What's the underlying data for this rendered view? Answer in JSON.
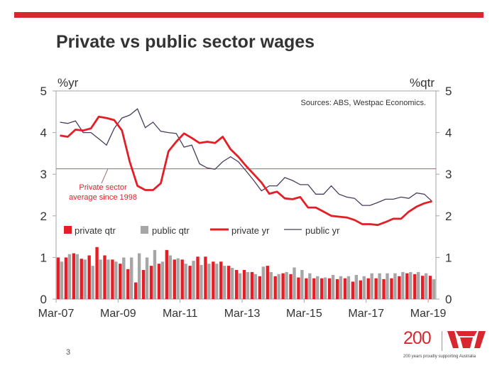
{
  "title": "Private vs public sector wages",
  "page_number": "3",
  "logo": {
    "number": "200",
    "tagline": "200 years proudly supporting Australia"
  },
  "colors": {
    "brand_red": "#d7282f",
    "private": "#e41e26",
    "public_qtr": "#a6a6a6",
    "public_yr": "#4a3d5c",
    "average": "#a8676c"
  },
  "chart_data": {
    "type": "bar+line",
    "left_unit": "%yr",
    "right_unit": "%qtr",
    "source_note": "Sources: ABS, Westpac Economics.",
    "ylim": [
      0,
      5
    ],
    "yticks": [
      "0",
      "1",
      "2",
      "3",
      "4",
      "5"
    ],
    "x_tick_labels": [
      "Mar-07",
      "Mar-09",
      "Mar-11",
      "Mar-13",
      "Mar-15",
      "Mar-17",
      "Mar-19"
    ],
    "x_tick_positions": [
      0,
      8,
      16,
      24,
      32,
      40,
      48
    ],
    "n_periods": 49,
    "annotation": {
      "line1": "Private sector",
      "line2": "average since 1998",
      "value": 3.13
    },
    "series": [
      {
        "name": "private qtr",
        "kind": "bar",
        "values": [
          1.0,
          1.0,
          1.1,
          0.97,
          1.05,
          1.25,
          1.05,
          0.95,
          0.85,
          0.72,
          0.4,
          0.7,
          0.8,
          0.85,
          1.18,
          0.95,
          0.95,
          0.8,
          1.02,
          1.02,
          0.9,
          0.9,
          0.8,
          0.7,
          0.7,
          0.65,
          0.55,
          0.8,
          0.55,
          0.62,
          0.6,
          0.52,
          0.5,
          0.5,
          0.5,
          0.5,
          0.48,
          0.5,
          0.42,
          0.45,
          0.5,
          0.5,
          0.48,
          0.5,
          0.55,
          0.62,
          0.6,
          0.56,
          0.56
        ]
      },
      {
        "name": "public qtr",
        "kind": "bar",
        "values": [
          0.9,
          1.08,
          1.08,
          0.95,
          0.8,
          0.95,
          0.95,
          0.9,
          1.0,
          1.0,
          1.1,
          1.0,
          1.18,
          0.9,
          1.05,
          0.98,
          0.85,
          0.92,
          0.82,
          0.85,
          0.85,
          0.8,
          0.75,
          0.62,
          0.65,
          0.6,
          0.78,
          0.65,
          0.6,
          0.65,
          0.76,
          0.7,
          0.62,
          0.55,
          0.52,
          0.58,
          0.55,
          0.55,
          0.58,
          0.55,
          0.62,
          0.62,
          0.62,
          0.62,
          0.65,
          0.65,
          0.65,
          0.62,
          0.48
        ]
      },
      {
        "name": "private yr",
        "kind": "line",
        "values": [
          3.93,
          3.9,
          4.07,
          4.05,
          4.1,
          4.38,
          4.35,
          4.3,
          4.05,
          3.3,
          2.72,
          2.62,
          2.62,
          2.78,
          3.55,
          3.78,
          3.98,
          3.87,
          3.75,
          3.78,
          3.75,
          3.9,
          3.6,
          3.42,
          3.2,
          3.0,
          2.8,
          2.53,
          2.58,
          2.42,
          2.4,
          2.45,
          2.2,
          2.2,
          2.1,
          2.0,
          1.98,
          1.96,
          1.9,
          1.8,
          1.8,
          1.78,
          1.85,
          1.93,
          1.93,
          2.1,
          2.22,
          2.3,
          2.35
        ]
      },
      {
        "name": "public yr",
        "kind": "line",
        "values": [
          4.25,
          4.22,
          4.28,
          4.0,
          4.0,
          3.85,
          3.7,
          4.1,
          4.35,
          4.42,
          4.57,
          4.12,
          4.25,
          4.03,
          4.0,
          3.98,
          3.65,
          3.7,
          3.25,
          3.15,
          3.12,
          3.3,
          3.42,
          3.3,
          3.08,
          2.85,
          2.6,
          2.72,
          2.72,
          2.92,
          2.85,
          2.75,
          2.75,
          2.52,
          2.52,
          2.72,
          2.52,
          2.45,
          2.42,
          2.25,
          2.25,
          2.32,
          2.4,
          2.4,
          2.45,
          2.42,
          2.55,
          2.52,
          2.35
        ]
      }
    ]
  }
}
